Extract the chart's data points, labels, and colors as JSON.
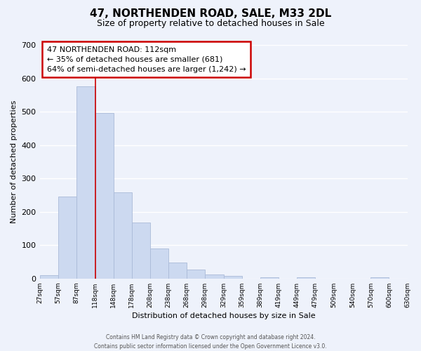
{
  "title": "47, NORTHENDEN ROAD, SALE, M33 2DL",
  "subtitle": "Size of property relative to detached houses in Sale",
  "xlabel": "Distribution of detached houses by size in Sale",
  "ylabel": "Number of detached properties",
  "bar_color": "#ccd9f0",
  "bar_edge_color": "#aabbd8",
  "bin_edges": [
    27,
    57,
    87,
    118,
    148,
    178,
    208,
    238,
    268,
    298,
    329,
    359,
    389,
    419,
    449,
    479,
    509,
    540,
    570,
    600,
    630
  ],
  "bar_heights": [
    10,
    245,
    575,
    495,
    258,
    168,
    90,
    47,
    27,
    12,
    8,
    0,
    3,
    0,
    4,
    0,
    0,
    0,
    3,
    0
  ],
  "tick_labels": [
    "27sqm",
    "57sqm",
    "87sqm",
    "118sqm",
    "148sqm",
    "178sqm",
    "208sqm",
    "238sqm",
    "268sqm",
    "298sqm",
    "329sqm",
    "359sqm",
    "389sqm",
    "419sqm",
    "449sqm",
    "479sqm",
    "509sqm",
    "540sqm",
    "570sqm",
    "600sqm",
    "630sqm"
  ],
  "ylim": [
    0,
    700
  ],
  "yticks": [
    0,
    100,
    200,
    300,
    400,
    500,
    600,
    700
  ],
  "vline_x": 118,
  "vline_color": "#cc0000",
  "annotation_line1": "47 NORTHENDEN ROAD: 112sqm",
  "annotation_line2": "← 35% of detached houses are smaller (681)",
  "annotation_line3": "64% of semi-detached houses are larger (1,242) →",
  "footer_line1": "Contains HM Land Registry data © Crown copyright and database right 2024.",
  "footer_line2": "Contains public sector information licensed under the Open Government Licence v3.0.",
  "background_color": "#eef2fb",
  "plot_bg_color": "#eef2fb",
  "grid_color": "#ffffff",
  "title_fontsize": 11,
  "subtitle_fontsize": 9
}
